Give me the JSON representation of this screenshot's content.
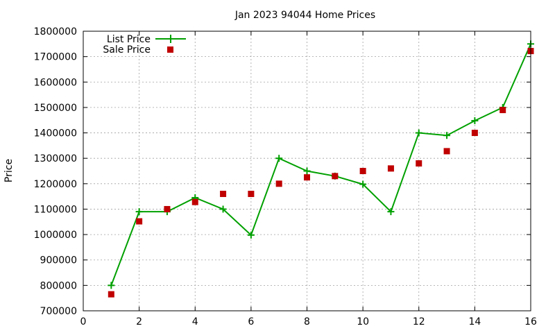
{
  "chart_data": {
    "type": "line",
    "title": "Jan 2023 94044 Home Prices",
    "xlabel": "",
    "ylabel": "Price",
    "xlim": [
      0,
      16
    ],
    "ylim": [
      700000,
      1800000
    ],
    "xticks": [
      "0",
      "2",
      "4",
      "6",
      "8",
      "10",
      "12",
      "14",
      "16"
    ],
    "yticks": [
      "700000",
      "800000",
      "900000",
      "1000000",
      "1100000",
      "1200000",
      "1300000",
      "1400000",
      "1500000",
      "1600000",
      "1700000",
      "1800000"
    ],
    "grid": true,
    "legend_position": "top-left",
    "series": [
      {
        "name": "List Price",
        "style": "lines+points",
        "marker": "plus",
        "color": "#00a000",
        "x": [
          1,
          2,
          3,
          4,
          5,
          6,
          7,
          8,
          9,
          10,
          11,
          12,
          13,
          14,
          15,
          16
        ],
        "values": [
          800000,
          1090000,
          1090000,
          1145000,
          1100000,
          998000,
          1300000,
          1250000,
          1230000,
          1198000,
          1090000,
          1400000,
          1390000,
          1448000,
          1500000,
          1750000
        ]
      },
      {
        "name": "Sale Price",
        "style": "points",
        "marker": "square",
        "color": "#c00000",
        "x": [
          1,
          2,
          3,
          4,
          5,
          6,
          7,
          8,
          9,
          10,
          11,
          12,
          13,
          14,
          15,
          16
        ],
        "values": [
          765000,
          1052000,
          1100000,
          1128000,
          1160000,
          1160000,
          1200000,
          1225000,
          1230000,
          1250000,
          1260000,
          1280000,
          1328000,
          1400000,
          1490000,
          1722000
        ]
      }
    ]
  }
}
